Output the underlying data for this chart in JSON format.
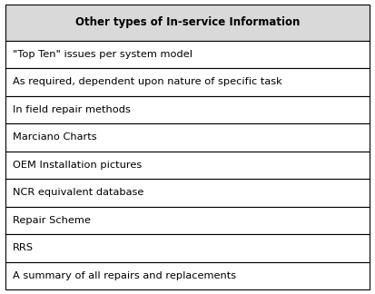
{
  "title": "Other types of In-service Information",
  "rows": [
    "\"Top Ten\" issues per system model",
    "As required, dependent upon nature of specific task",
    "In field repair methods",
    "Marciano Charts",
    "OEM Installation pictures",
    "NCR equivalent database",
    "Repair Scheme",
    "RRS",
    "A summary of all repairs and replacements"
  ],
  "header_bg": "#d9d9d9",
  "row_bg": "#ffffff",
  "border_color": "#000000",
  "header_fontsize": 8.5,
  "row_fontsize": 8.2,
  "title_color": "#000000",
  "row_text_color": "#000000",
  "fig_bg": "#ffffff",
  "fig_width": 4.13,
  "fig_height": 3.24,
  "dpi": 100
}
